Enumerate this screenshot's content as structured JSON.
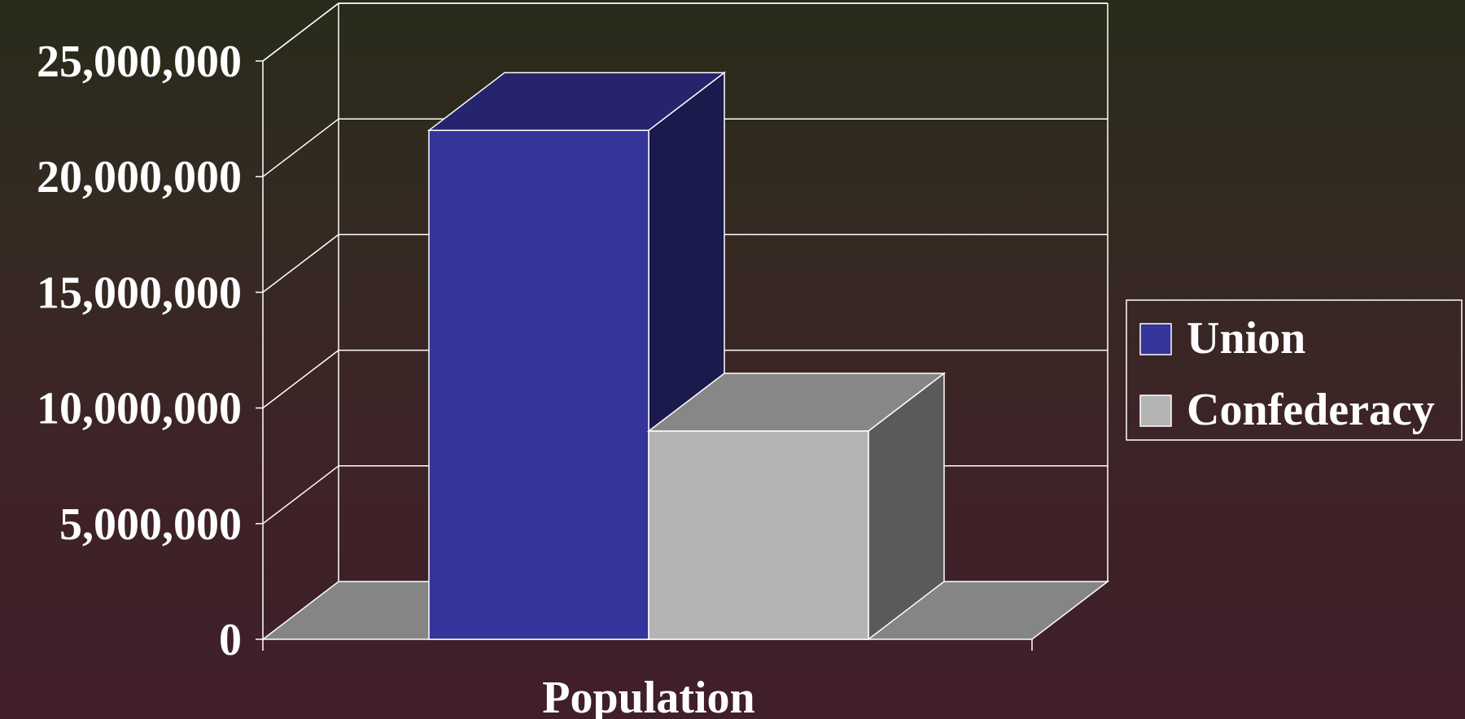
{
  "chart_data": {
    "type": "bar",
    "style": "3d-column",
    "categories": [
      "Population"
    ],
    "series": [
      {
        "name": "Union",
        "values": [
          22000000
        ],
        "color": "#35349a"
      },
      {
        "name": "Confederacy",
        "values": [
          9000000
        ],
        "color": "#b4b4b4"
      }
    ],
    "ylim": [
      0,
      25000000
    ],
    "yticks": [
      "0",
      "5,000,000",
      "10,000,000",
      "15,000,000",
      "20,000,000",
      "25,000,000"
    ],
    "grid": true,
    "legend": "right"
  }
}
